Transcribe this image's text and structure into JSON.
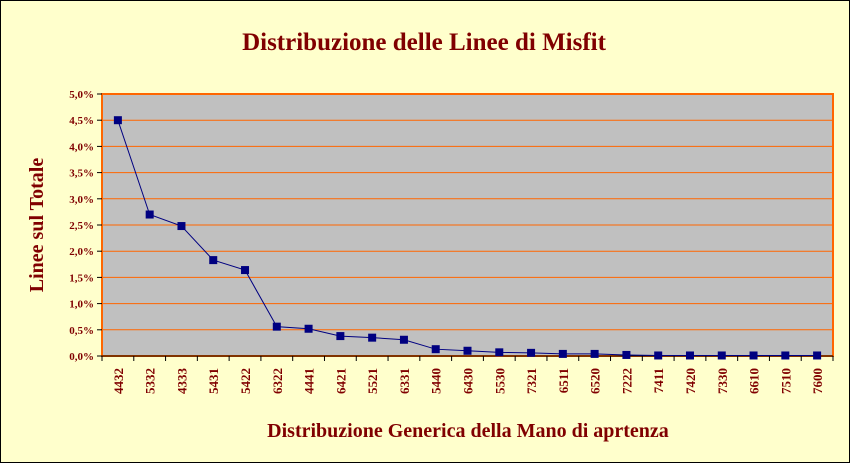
{
  "colors": {
    "frame_background": "#ffffcc",
    "plot_background": "#c0c0c0",
    "plot_border": "#ff6600",
    "gridline": "#ff6600",
    "series_line": "#000080",
    "series_marker": "#000080",
    "text": "#800000"
  },
  "chart_data": {
    "type": "line",
    "title": "Distribuzione delle Linee di Misfit",
    "xlabel": "Distribuzione Generica della Mano di aprtenza",
    "ylabel": "Linee sul Totale",
    "categories": [
      "4432",
      "5332",
      "4333",
      "5431",
      "5422",
      "6322",
      "4441",
      "6421",
      "5521",
      "6331",
      "5440",
      "6430",
      "5530",
      "7321",
      "6511",
      "6520",
      "7222",
      "7411",
      "7420",
      "7330",
      "6610",
      "7510",
      "7600"
    ],
    "series": [
      {
        "values": [
          4.5,
          2.7,
          2.48,
          1.83,
          1.64,
          0.56,
          0.52,
          0.38,
          0.35,
          0.31,
          0.13,
          0.1,
          0.07,
          0.06,
          0.04,
          0.04,
          0.02,
          0.01,
          0.01,
          0.01,
          0.01,
          0.01,
          0.01
        ]
      }
    ],
    "ylim": [
      0,
      5
    ],
    "y_tick_step": 0.5,
    "y_tick_labels": [
      "0,0%",
      "0,5%",
      "1,0%",
      "1,5%",
      "2,0%",
      "2,5%",
      "3,0%",
      "3,5%",
      "4,0%",
      "4,5%",
      "5,0%"
    ],
    "grid": true,
    "legend": "none"
  }
}
